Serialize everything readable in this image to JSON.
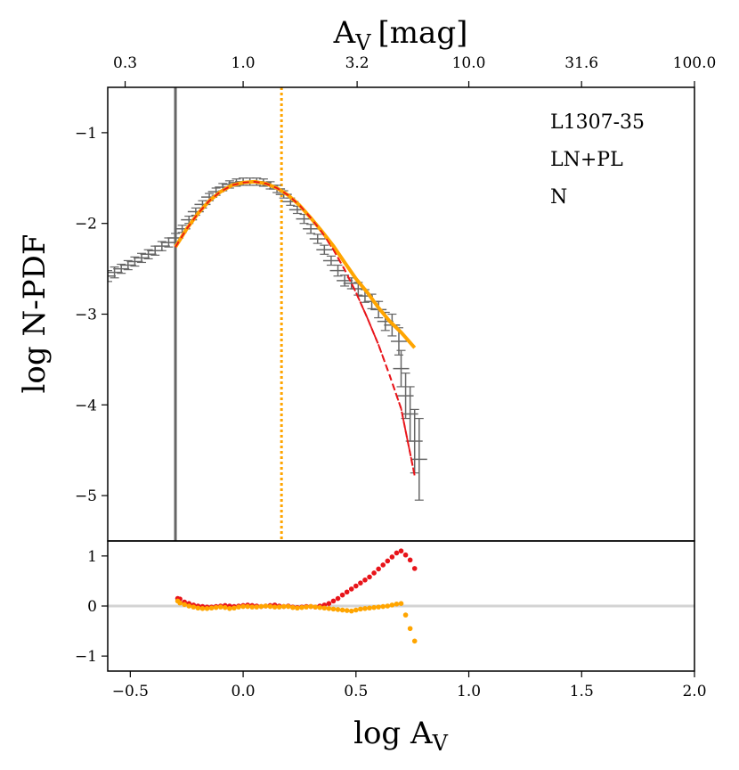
{
  "chart_data": {
    "type": "line",
    "title": "",
    "top_axis": {
      "label_main": "A",
      "label_sub": "V",
      "label_unit": "[mag]",
      "tick_values": [
        -0.5229,
        0.0,
        0.5051,
        1.0,
        1.4996,
        2.0
      ],
      "tick_labels": [
        "0.3",
        "1.0",
        "3.2",
        "10.0",
        "31.6",
        "100.0"
      ]
    },
    "xlabel_main": "log A",
    "xlabel_sub": "V",
    "ylabel": "log N-PDF",
    "xlim": [
      -0.6,
      2.0
    ],
    "x_ticks": [
      -0.5,
      0.0,
      0.5,
      1.0,
      1.5,
      2.0
    ],
    "x_tick_labels": [
      "−0.5",
      "0.0",
      "0.5",
      "1.0",
      "1.5",
      "2.0"
    ],
    "main_panel": {
      "ylim": [
        -5.5,
        -0.5
      ],
      "y_ticks": [
        -1,
        -2,
        -3,
        -4,
        -5
      ],
      "y_tick_labels": [
        "−1",
        "−2",
        "−3",
        "−4",
        "−5"
      ],
      "annotations": [
        "L1307-35",
        "LN+PL",
        "N"
      ],
      "vertical_lines": [
        {
          "name": "completeness limit",
          "x": -0.3,
          "color": "#666666",
          "style": "solid"
        },
        {
          "name": "transition point",
          "x": 0.17,
          "color": "#ffa500",
          "style": "dotted"
        }
      ],
      "series": [
        {
          "name": "observed N-PDF",
          "color": "#666666",
          "style": "errorbar",
          "x": [
            -0.6,
            -0.57,
            -0.54,
            -0.51,
            -0.48,
            -0.45,
            -0.42,
            -0.39,
            -0.36,
            -0.33,
            -0.3,
            -0.27,
            -0.24,
            -0.21,
            -0.18,
            -0.15,
            -0.12,
            -0.09,
            -0.06,
            -0.03,
            0.0,
            0.03,
            0.06,
            0.09,
            0.12,
            0.15,
            0.18,
            0.21,
            0.24,
            0.27,
            0.3,
            0.33,
            0.36,
            0.39,
            0.42,
            0.45,
            0.48,
            0.51,
            0.54,
            0.57,
            0.6,
            0.63,
            0.66,
            0.69,
            0.7,
            0.72,
            0.74,
            0.76,
            0.78
          ],
          "y": [
            -2.58,
            -2.54,
            -2.5,
            -2.46,
            -2.42,
            -2.38,
            -2.34,
            -2.3,
            -2.25,
            -2.21,
            -2.16,
            -2.06,
            -1.96,
            -1.87,
            -1.79,
            -1.71,
            -1.65,
            -1.6,
            -1.57,
            -1.55,
            -1.54,
            -1.54,
            -1.54,
            -1.55,
            -1.58,
            -1.62,
            -1.68,
            -1.76,
            -1.85,
            -1.95,
            -2.06,
            -2.17,
            -2.29,
            -2.41,
            -2.52,
            -2.63,
            -2.66,
            -2.72,
            -2.8,
            -2.86,
            -2.95,
            -3.08,
            -3.12,
            -3.3,
            -3.6,
            -3.9,
            -4.1,
            -4.4,
            -4.6
          ],
          "yerr": [
            0.06,
            0.06,
            0.05,
            0.05,
            0.05,
            0.05,
            0.05,
            0.05,
            0.05,
            0.05,
            0.05,
            0.04,
            0.04,
            0.04,
            0.04,
            0.04,
            0.04,
            0.04,
            0.04,
            0.04,
            0.04,
            0.04,
            0.04,
            0.04,
            0.04,
            0.04,
            0.04,
            0.04,
            0.04,
            0.05,
            0.05,
            0.05,
            0.05,
            0.05,
            0.06,
            0.06,
            0.06,
            0.07,
            0.07,
            0.08,
            0.09,
            0.1,
            0.12,
            0.15,
            0.2,
            0.25,
            0.3,
            0.35,
            0.45
          ]
        },
        {
          "name": "lognormal fit",
          "color": "#e8141a",
          "style": "dashed",
          "x": [
            -0.3,
            -0.25,
            -0.2,
            -0.15,
            -0.1,
            -0.05,
            0.0,
            0.05,
            0.1,
            0.15,
            0.2,
            0.25,
            0.3,
            0.35,
            0.4,
            0.45,
            0.5,
            0.55,
            0.6,
            0.65,
            0.7,
            0.76
          ],
          "y": [
            -2.26,
            -2.06,
            -1.89,
            -1.75,
            -1.65,
            -1.58,
            -1.55,
            -1.54,
            -1.56,
            -1.61,
            -1.69,
            -1.8,
            -1.94,
            -2.1,
            -2.29,
            -2.51,
            -2.76,
            -3.04,
            -3.34,
            -3.68,
            -4.04,
            -4.78
          ]
        },
        {
          "name": "LN+PL fit",
          "color": "#ffa500",
          "style": "solid",
          "x": [
            -0.3,
            -0.25,
            -0.2,
            -0.15,
            -0.1,
            -0.05,
            0.0,
            0.05,
            0.1,
            0.15,
            0.2,
            0.25,
            0.3,
            0.35,
            0.4,
            0.45,
            0.5,
            0.55,
            0.6,
            0.65,
            0.7,
            0.76
          ],
          "y": [
            -2.26,
            -2.06,
            -1.89,
            -1.75,
            -1.65,
            -1.58,
            -1.55,
            -1.54,
            -1.56,
            -1.61,
            -1.69,
            -1.8,
            -1.94,
            -2.09,
            -2.25,
            -2.43,
            -2.61,
            -2.76,
            -2.93,
            -3.08,
            -3.2,
            -3.37
          ]
        }
      ]
    },
    "residual_panel": {
      "ylim": [
        -1.3,
        1.3
      ],
      "y_ticks": [
        1,
        0,
        -1
      ],
      "y_tick_labels": [
        "1",
        "0",
        "−1"
      ],
      "zero_line_color": "#d3d3d3",
      "series": [
        {
          "name": "lognormal residuals",
          "color": "#e8141a",
          "x": [
            -0.29,
            -0.28,
            -0.26,
            -0.24,
            -0.22,
            -0.2,
            -0.18,
            -0.16,
            -0.14,
            -0.12,
            -0.1,
            -0.08,
            -0.06,
            -0.04,
            -0.02,
            0.0,
            0.02,
            0.04,
            0.06,
            0.08,
            0.1,
            0.12,
            0.14,
            0.16,
            0.18,
            0.2,
            0.22,
            0.24,
            0.26,
            0.28,
            0.3,
            0.32,
            0.34,
            0.36,
            0.38,
            0.4,
            0.42,
            0.44,
            0.46,
            0.48,
            0.5,
            0.52,
            0.54,
            0.56,
            0.58,
            0.6,
            0.62,
            0.64,
            0.66,
            0.68,
            0.7,
            0.72,
            0.74,
            0.76
          ],
          "y": [
            0.15,
            0.14,
            0.08,
            0.05,
            0.02,
            0.0,
            -0.01,
            -0.02,
            -0.02,
            -0.01,
            0.0,
            0.01,
            0.0,
            -0.01,
            0.0,
            0.01,
            0.02,
            0.01,
            0.0,
            -0.01,
            0.0,
            0.01,
            0.02,
            0.0,
            -0.01,
            0.0,
            -0.02,
            -0.03,
            -0.02,
            -0.01,
            -0.01,
            -0.02,
            0.0,
            0.02,
            0.05,
            0.1,
            0.15,
            0.22,
            0.28,
            0.34,
            0.4,
            0.46,
            0.52,
            0.58,
            0.66,
            0.74,
            0.82,
            0.9,
            0.98,
            1.06,
            1.1,
            1.02,
            0.92,
            0.75
          ]
        },
        {
          "name": "LN+PL residuals",
          "color": "#ffa500",
          "x": [
            -0.29,
            -0.28,
            -0.26,
            -0.24,
            -0.22,
            -0.2,
            -0.18,
            -0.16,
            -0.14,
            -0.12,
            -0.1,
            -0.08,
            -0.06,
            -0.04,
            -0.02,
            0.0,
            0.02,
            0.04,
            0.06,
            0.08,
            0.1,
            0.12,
            0.14,
            0.16,
            0.18,
            0.2,
            0.22,
            0.24,
            0.26,
            0.28,
            0.3,
            0.32,
            0.34,
            0.36,
            0.38,
            0.4,
            0.42,
            0.44,
            0.46,
            0.48,
            0.5,
            0.52,
            0.54,
            0.56,
            0.58,
            0.6,
            0.62,
            0.64,
            0.66,
            0.68,
            0.7,
            0.72,
            0.74,
            0.76
          ],
          "y": [
            0.1,
            0.06,
            0.03,
            0.0,
            -0.02,
            -0.04,
            -0.05,
            -0.05,
            -0.04,
            -0.03,
            -0.02,
            -0.03,
            -0.05,
            -0.04,
            -0.02,
            -0.01,
            -0.01,
            -0.02,
            -0.02,
            -0.01,
            0.0,
            -0.01,
            -0.02,
            -0.02,
            -0.01,
            -0.01,
            -0.03,
            -0.04,
            -0.03,
            -0.02,
            -0.01,
            -0.02,
            -0.03,
            -0.04,
            -0.05,
            -0.06,
            -0.07,
            -0.08,
            -0.09,
            -0.1,
            -0.08,
            -0.06,
            -0.05,
            -0.04,
            -0.03,
            -0.02,
            -0.01,
            0.0,
            0.02,
            0.04,
            0.05,
            -0.18,
            -0.45,
            -0.7
          ]
        }
      ]
    }
  }
}
